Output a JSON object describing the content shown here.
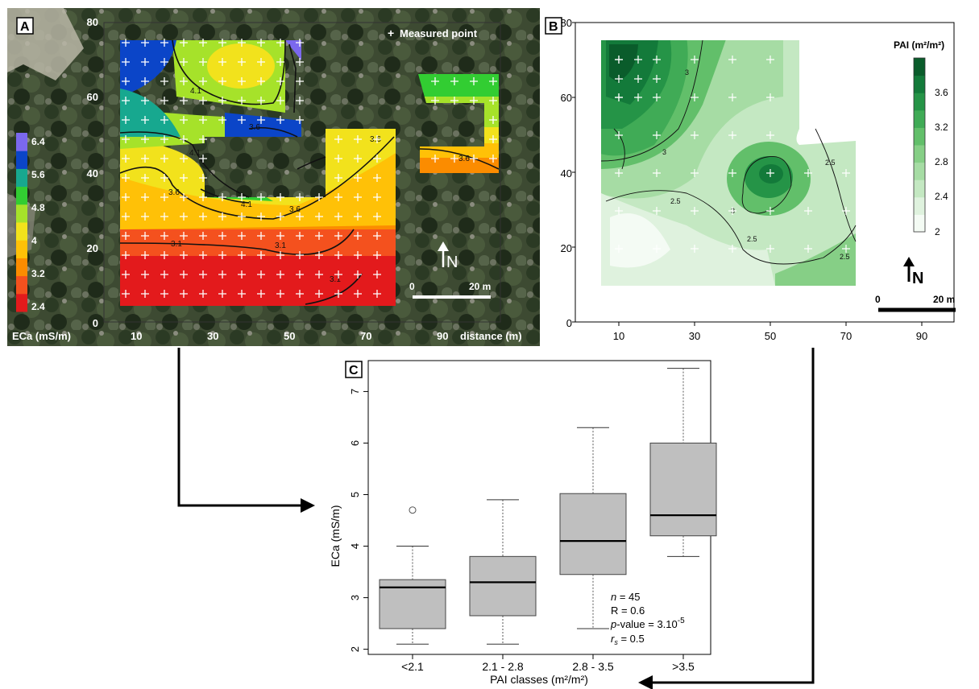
{
  "panels": {
    "a": {
      "letter": "A",
      "x_ticks": [
        "10",
        "30",
        "50",
        "70",
        "90"
      ],
      "x_axis_label": "distance (m)",
      "y_ticks": [
        "0",
        "20",
        "40",
        "60",
        "80"
      ],
      "legend_title": "ECa (mS/m)",
      "legend_ticks": [
        "6.4",
        "5.6",
        "4.8",
        "4",
        "3.2",
        "2.4"
      ],
      "contour_labels": [
        "4.1",
        "4.1",
        "3.6",
        "3.6",
        "3.6",
        "3.6",
        "4.1",
        "3.1",
        "3.1",
        "3.1"
      ],
      "marker_legend": "Measured point",
      "marker_symbol": "+",
      "north": "N",
      "scale_start": "0",
      "scale_end": "20 m",
      "colors": [
        "#e31a1c",
        "#f4511e",
        "#fb8c00",
        "#ffc107",
        "#f2e21c",
        "#a6e22a",
        "#32cd32",
        "#17a88f",
        "#0b45c8",
        "#7b68ee"
      ]
    },
    "b": {
      "letter": "B",
      "x_ticks": [
        "10",
        "30",
        "50",
        "70",
        "90"
      ],
      "y_ticks": [
        "0",
        "20",
        "40",
        "60",
        "80"
      ],
      "legend_title": "PAI (m²/m²)",
      "legend_ticks": [
        "3.6",
        "3.2",
        "2.8",
        "2.4",
        "2"
      ],
      "contour_labels": [
        "3",
        "3",
        "2.5",
        "2.5",
        "2.5",
        "2.5",
        "3"
      ],
      "north": "N",
      "scale_start": "0",
      "scale_end": "20 m",
      "colors": [
        "#f4fbf4",
        "#dff2de",
        "#c4e8c2",
        "#a6dca4",
        "#86cf86",
        "#62bf6a",
        "#40ab56",
        "#259447",
        "#137a3a",
        "#0a5c2b"
      ]
    },
    "c": {
      "letter": "C",
      "stats": {
        "n_label": "n",
        "n_value": " = 45",
        "r_line": "R = 0.6",
        "p_label": "p",
        "p_value": "-value = 3.10",
        "p_exp": "-5",
        "rs_label": "r",
        "rs_sub": "s",
        "rs_value": " = 0.5"
      }
    }
  },
  "chart_data": {
    "type": "box",
    "xlabel": "PAI classes (m²/m²)",
    "ylabel": "ECa (mS/m)",
    "ylim": [
      1.9,
      7.6
    ],
    "yticks": [
      2,
      3,
      4,
      5,
      6,
      7
    ],
    "categories": [
      "<2.1",
      "2.1 - 2.8",
      "2.8 - 3.5",
      ">3.5"
    ],
    "boxes": [
      {
        "whisker_low": 2.1,
        "q1": 2.4,
        "median": 3.2,
        "q3": 3.35,
        "whisker_high": 4.0,
        "outliers": [
          4.7
        ]
      },
      {
        "whisker_low": 2.1,
        "q1": 2.65,
        "median": 3.3,
        "q3": 3.8,
        "whisker_high": 4.9,
        "outliers": []
      },
      {
        "whisker_low": 2.4,
        "q1": 3.45,
        "median": 4.1,
        "q3": 5.02,
        "whisker_high": 6.3,
        "outliers": []
      },
      {
        "whisker_low": 3.8,
        "q1": 4.2,
        "median": 4.6,
        "q3": 6.0,
        "whisker_high": 7.45,
        "outliers": []
      }
    ],
    "box_color": "#bfbfbf"
  }
}
